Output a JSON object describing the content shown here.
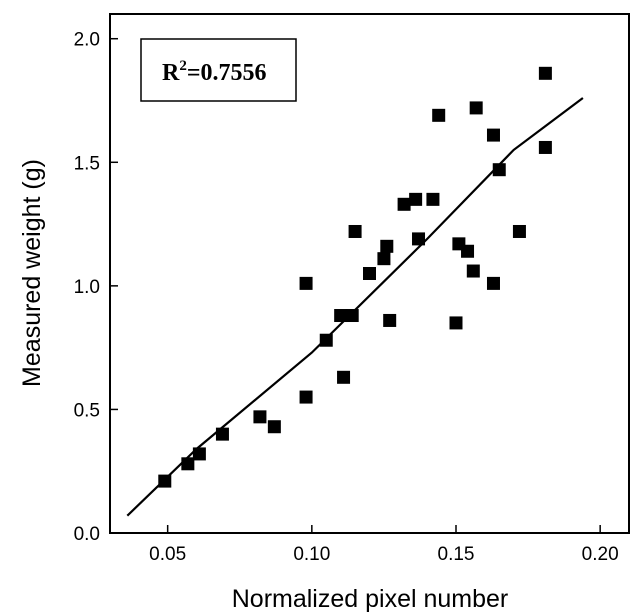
{
  "chart_data": {
    "type": "scatter",
    "xlabel": "Normalized pixel number",
    "ylabel": "Measured weight (g)",
    "xlim": [
      0.03,
      0.21
    ],
    "ylim": [
      0.0,
      2.1
    ],
    "xticks": [
      "0.05",
      "0.10",
      "0.15",
      "0.20"
    ],
    "xtick_values": [
      0.05,
      0.1,
      0.15,
      0.2
    ],
    "yticks": [
      "0.0",
      "0.5",
      "1.0",
      "1.5",
      "2.0"
    ],
    "ytick_values": [
      0.0,
      0.5,
      1.0,
      1.5,
      2.0
    ],
    "grid": false,
    "marker": "square",
    "marker_color": "#000000",
    "annotation": {
      "prefix": "R",
      "superscript": "2",
      "value": "=0.7556"
    },
    "points": [
      {
        "x": 0.049,
        "y": 0.21
      },
      {
        "x": 0.057,
        "y": 0.28
      },
      {
        "x": 0.061,
        "y": 0.32
      },
      {
        "x": 0.069,
        "y": 0.4
      },
      {
        "x": 0.082,
        "y": 0.47
      },
      {
        "x": 0.087,
        "y": 0.43
      },
      {
        "x": 0.098,
        "y": 0.55
      },
      {
        "x": 0.098,
        "y": 1.01
      },
      {
        "x": 0.105,
        "y": 0.78
      },
      {
        "x": 0.11,
        "y": 0.88
      },
      {
        "x": 0.111,
        "y": 0.63
      },
      {
        "x": 0.114,
        "y": 0.88
      },
      {
        "x": 0.115,
        "y": 1.22
      },
      {
        "x": 0.12,
        "y": 1.05
      },
      {
        "x": 0.125,
        "y": 1.11
      },
      {
        "x": 0.126,
        "y": 1.16
      },
      {
        "x": 0.127,
        "y": 0.86
      },
      {
        "x": 0.132,
        "y": 1.33
      },
      {
        "x": 0.136,
        "y": 1.35
      },
      {
        "x": 0.137,
        "y": 1.19
      },
      {
        "x": 0.142,
        "y": 1.35
      },
      {
        "x": 0.144,
        "y": 1.69
      },
      {
        "x": 0.15,
        "y": 0.85
      },
      {
        "x": 0.151,
        "y": 1.17
      },
      {
        "x": 0.154,
        "y": 1.14
      },
      {
        "x": 0.156,
        "y": 1.06
      },
      {
        "x": 0.157,
        "y": 1.72
      },
      {
        "x": 0.163,
        "y": 1.61
      },
      {
        "x": 0.163,
        "y": 1.01
      },
      {
        "x": 0.165,
        "y": 1.47
      },
      {
        "x": 0.172,
        "y": 1.22
      },
      {
        "x": 0.181,
        "y": 1.56
      },
      {
        "x": 0.181,
        "y": 1.86
      }
    ],
    "fit_line": [
      {
        "x": 0.036,
        "y": 0.07
      },
      {
        "x": 0.06,
        "y": 0.34
      },
      {
        "x": 0.1,
        "y": 0.73
      },
      {
        "x": 0.14,
        "y": 1.19
      },
      {
        "x": 0.17,
        "y": 1.55
      },
      {
        "x": 0.194,
        "y": 1.76
      }
    ]
  }
}
